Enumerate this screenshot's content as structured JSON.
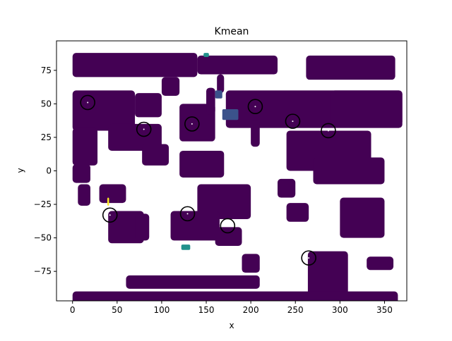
{
  "chart_data": {
    "type": "scatter",
    "title": "Kmean",
    "xlabel": "x",
    "ylabel": "y",
    "xlim": [
      -18,
      375
    ],
    "ylim": [
      -97,
      97
    ],
    "xticks": [
      0,
      50,
      100,
      150,
      200,
      250,
      300,
      350
    ],
    "yticks": [
      -75,
      -50,
      -25,
      0,
      25,
      50,
      75
    ],
    "grid": false,
    "legend": "none",
    "colors": {
      "cluster_main": "#440154",
      "cluster_minor_1": "#3b528b",
      "cluster_minor_2": "#21918c",
      "cluster_minor_3": "#5ec962",
      "cluster_minor_4": "#fde725",
      "centroid_edge": "#000000"
    },
    "points": [
      {
        "x": 0,
        "y": 88,
        "w": 140,
        "h": 18
      },
      {
        "x": 140,
        "y": 86,
        "w": 90,
        "h": 14
      },
      {
        "x": 262,
        "y": 86,
        "w": 100,
        "h": 18
      },
      {
        "x": 0,
        "y": 60,
        "w": 70,
        "h": 30
      },
      {
        "x": 0,
        "y": 32,
        "w": 28,
        "h": 28
      },
      {
        "x": 40,
        "y": 35,
        "w": 60,
        "h": 20
      },
      {
        "x": 70,
        "y": 58,
        "w": 30,
        "h": 18
      },
      {
        "x": 100,
        "y": 70,
        "w": 20,
        "h": 14
      },
      {
        "x": 120,
        "y": 50,
        "w": 40,
        "h": 28
      },
      {
        "x": 150,
        "y": 62,
        "w": 10,
        "h": 20
      },
      {
        "x": 162,
        "y": 72,
        "w": 8,
        "h": 14
      },
      {
        "x": 172,
        "y": 60,
        "w": 198,
        "h": 28
      },
      {
        "x": 200,
        "y": 38,
        "w": 10,
        "h": 20
      },
      {
        "x": 240,
        "y": 30,
        "w": 95,
        "h": 30
      },
      {
        "x": 270,
        "y": 10,
        "w": 80,
        "h": 20
      },
      {
        "x": 300,
        "y": -20,
        "w": 50,
        "h": 30
      },
      {
        "x": 264,
        "y": -60,
        "w": 45,
        "h": 44
      },
      {
        "x": 78,
        "y": 20,
        "w": 30,
        "h": 16
      },
      {
        "x": 120,
        "y": 15,
        "w": 50,
        "h": 20
      },
      {
        "x": 140,
        "y": -10,
        "w": 60,
        "h": 26
      },
      {
        "x": 110,
        "y": -30,
        "w": 55,
        "h": 22
      },
      {
        "x": 160,
        "y": -42,
        "w": 30,
        "h": 14
      },
      {
        "x": 0,
        "y": 5,
        "w": 20,
        "h": 14
      },
      {
        "x": 6,
        "y": -10,
        "w": 14,
        "h": 16
      },
      {
        "x": 30,
        "y": -10,
        "w": 30,
        "h": 14
      },
      {
        "x": 40,
        "y": -30,
        "w": 40,
        "h": 24
      },
      {
        "x": 70,
        "y": -32,
        "w": 16,
        "h": 20
      },
      {
        "x": 230,
        "y": -6,
        "w": 20,
        "h": 14
      },
      {
        "x": 240,
        "y": -24,
        "w": 25,
        "h": 14
      },
      {
        "x": 0,
        "y": -90,
        "w": 365,
        "h": 14
      },
      {
        "x": 60,
        "y": -78,
        "w": 150,
        "h": 10
      },
      {
        "x": 190,
        "y": -62,
        "w": 20,
        "h": 14
      },
      {
        "x": 330,
        "y": -64,
        "w": 30,
        "h": 10
      },
      {
        "x": 290,
        "y": 60,
        "w": 80,
        "h": 26
      }
    ],
    "minor_clusters": [
      {
        "cluster": "cluster_minor_1",
        "x": 168,
        "y": 46,
        "w": 18,
        "h": 8
      },
      {
        "cluster": "cluster_minor_1",
        "x": 160,
        "y": 60,
        "w": 8,
        "h": 6
      },
      {
        "cluster": "cluster_minor_2",
        "x": 122,
        "y": -55,
        "w": 10,
        "h": 4
      },
      {
        "cluster": "cluster_minor_2",
        "x": 147,
        "y": 88,
        "w": 6,
        "h": 3
      },
      {
        "cluster": "cluster_minor_4",
        "x": 39,
        "y": -20,
        "w": 2,
        "h": 6
      }
    ],
    "centroids": [
      {
        "x": 17,
        "y": 51
      },
      {
        "x": 80,
        "y": 31
      },
      {
        "x": 134,
        "y": 35
      },
      {
        "x": 205,
        "y": 48
      },
      {
        "x": 247,
        "y": 37
      },
      {
        "x": 287,
        "y": 30
      },
      {
        "x": 42,
        "y": -33
      },
      {
        "x": 129,
        "y": -32
      },
      {
        "x": 174,
        "y": -41
      },
      {
        "x": 265,
        "y": -65
      }
    ]
  }
}
